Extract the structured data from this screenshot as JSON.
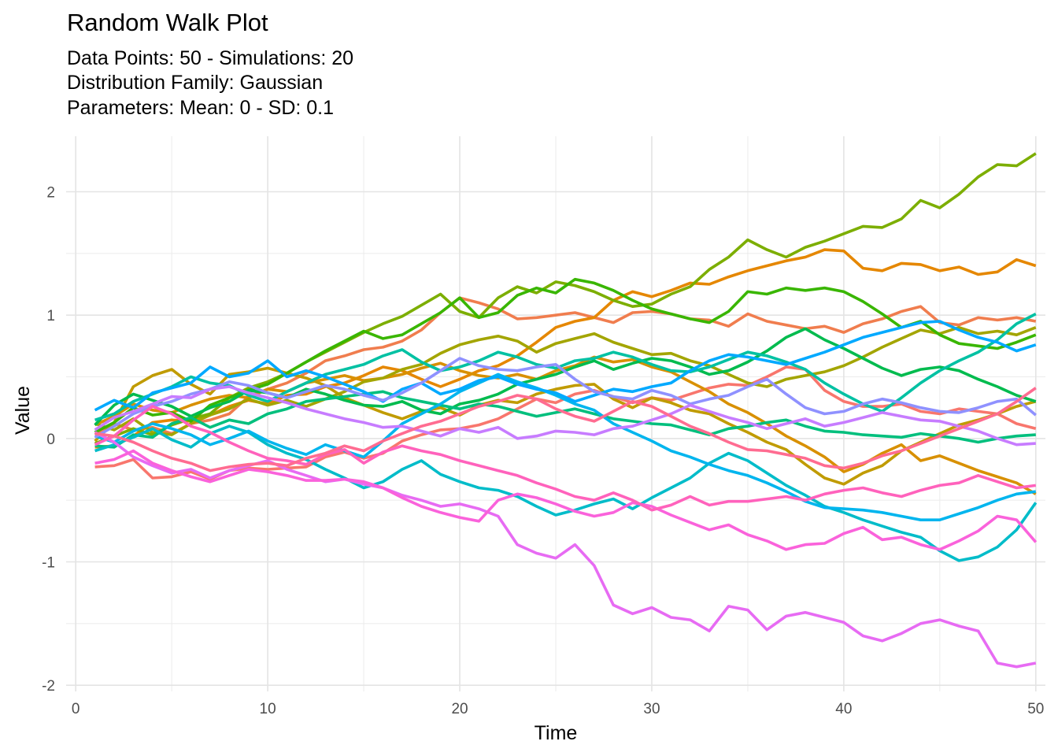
{
  "chart_data": {
    "type": "line",
    "title": "Random Walk Plot",
    "subtitle_lines": [
      "Data Points: 50 - Simulations: 20",
      "Distribution Family: Gaussian",
      "Parameters: Mean: 0 - SD: 0.1"
    ],
    "xlabel": "Time",
    "ylabel": "Value",
    "xlim": [
      -0.5,
      50.5
    ],
    "ylim": [
      -2.05,
      2.45
    ],
    "xticks": [
      0,
      10,
      20,
      30,
      40,
      50
    ],
    "yticks": [
      -2,
      -1,
      0,
      1,
      2
    ],
    "grid": true,
    "legend": "none",
    "x": [
      1,
      2,
      3,
      4,
      5,
      6,
      7,
      8,
      9,
      10,
      11,
      12,
      13,
      14,
      15,
      16,
      17,
      18,
      19,
      20,
      21,
      22,
      23,
      24,
      25,
      26,
      27,
      28,
      29,
      30,
      31,
      32,
      33,
      34,
      35,
      36,
      37,
      38,
      39,
      40,
      41,
      42,
      43,
      44,
      45,
      46,
      47,
      48,
      49,
      50
    ],
    "series": [
      {
        "color": "#F8766D",
        "values": [
          -0.23,
          -0.22,
          -0.17,
          -0.32,
          -0.31,
          -0.27,
          -0.33,
          -0.26,
          -0.24,
          -0.25,
          -0.24,
          -0.23,
          -0.15,
          -0.11,
          -0.16,
          -0.12,
          -0.02,
          0.03,
          0.07,
          0.08,
          0.11,
          0.16,
          0.24,
          0.32,
          0.29,
          0.36,
          0.39,
          0.34,
          0.29,
          0.33,
          0.31,
          0.36,
          0.41,
          0.44,
          0.43,
          0.5,
          0.58,
          0.56,
          0.39,
          0.3,
          0.26,
          0.26,
          0.28,
          0.22,
          0.2,
          0.24,
          0.22,
          0.2,
          0.12,
          0.08
        ]
      },
      {
        "color": "#F07D4E",
        "values": [
          0.03,
          0.12,
          0.07,
          0.09,
          0.04,
          0.12,
          0.15,
          0.2,
          0.34,
          0.4,
          0.45,
          0.53,
          0.63,
          0.67,
          0.72,
          0.74,
          0.79,
          0.88,
          1.02,
          1.14,
          1.1,
          1.05,
          0.97,
          0.98,
          1.0,
          1.02,
          0.98,
          0.94,
          1.02,
          1.03,
          1.01,
          0.97,
          0.96,
          0.91,
          1.01,
          0.95,
          0.92,
          0.89,
          0.91,
          0.86,
          0.93,
          0.97,
          1.03,
          1.07,
          0.94,
          0.92,
          0.98,
          0.96,
          0.98,
          0.95
        ]
      },
      {
        "color": "#E58700",
        "values": [
          -0.07,
          -0.06,
          0.02,
          0.13,
          0.15,
          0.14,
          0.19,
          0.26,
          0.31,
          0.28,
          0.35,
          0.36,
          0.42,
          0.45,
          0.51,
          0.58,
          0.55,
          0.48,
          0.42,
          0.48,
          0.55,
          0.59,
          0.67,
          0.78,
          0.9,
          0.95,
          0.98,
          1.12,
          1.19,
          1.15,
          1.2,
          1.26,
          1.25,
          1.31,
          1.36,
          1.4,
          1.44,
          1.47,
          1.53,
          1.52,
          1.38,
          1.36,
          1.42,
          1.41,
          1.36,
          1.39,
          1.33,
          1.35,
          1.45,
          1.4
        ]
      },
      {
        "color": "#D89000",
        "values": [
          0.11,
          0.18,
          0.28,
          0.23,
          0.21,
          0.27,
          0.32,
          0.35,
          0.33,
          0.4,
          0.38,
          0.45,
          0.48,
          0.51,
          0.47,
          0.49,
          0.52,
          0.57,
          0.61,
          0.55,
          0.51,
          0.49,
          0.52,
          0.48,
          0.55,
          0.59,
          0.66,
          0.62,
          0.64,
          0.58,
          0.54,
          0.46,
          0.38,
          0.28,
          0.21,
          0.12,
          0.02,
          -0.06,
          -0.15,
          -0.27,
          -0.21,
          -0.12,
          -0.05,
          -0.18,
          -0.14,
          -0.2,
          -0.26,
          -0.31,
          -0.36,
          -0.45
        ]
      },
      {
        "color": "#C09B00",
        "values": [
          -0.02,
          0.13,
          0.42,
          0.51,
          0.56,
          0.44,
          0.36,
          0.52,
          0.54,
          0.57,
          0.53,
          0.49,
          0.43,
          0.33,
          0.27,
          0.21,
          0.16,
          0.22,
          0.25,
          0.19,
          0.27,
          0.31,
          0.29,
          0.36,
          0.4,
          0.43,
          0.44,
          0.32,
          0.25,
          0.33,
          0.29,
          0.23,
          0.2,
          0.12,
          0.05,
          -0.03,
          -0.09,
          -0.21,
          -0.32,
          -0.37,
          -0.28,
          -0.22,
          -0.1,
          -0.03,
          0.04,
          0.11,
          0.15,
          0.2,
          0.26,
          0.3
        ]
      },
      {
        "color": "#A3A500",
        "values": [
          0.12,
          0.07,
          0.16,
          0.05,
          0.03,
          0.12,
          0.19,
          0.24,
          0.32,
          0.27,
          0.31,
          0.26,
          0.32,
          0.38,
          0.46,
          0.49,
          0.56,
          0.6,
          0.69,
          0.76,
          0.8,
          0.83,
          0.79,
          0.7,
          0.77,
          0.81,
          0.85,
          0.78,
          0.73,
          0.68,
          0.69,
          0.63,
          0.59,
          0.52,
          0.45,
          0.42,
          0.48,
          0.51,
          0.54,
          0.59,
          0.66,
          0.74,
          0.81,
          0.88,
          0.85,
          0.9,
          0.85,
          0.87,
          0.84,
          0.9
        ]
      },
      {
        "color": "#7CAE00",
        "values": [
          -0.04,
          0.02,
          0.08,
          0.03,
          0.11,
          0.16,
          0.2,
          0.33,
          0.41,
          0.46,
          0.53,
          0.62,
          0.7,
          0.78,
          0.86,
          0.93,
          0.99,
          1.08,
          1.17,
          1.03,
          0.98,
          1.14,
          1.23,
          1.18,
          1.27,
          1.24,
          1.19,
          1.12,
          1.07,
          1.09,
          1.17,
          1.23,
          1.37,
          1.47,
          1.61,
          1.53,
          1.47,
          1.55,
          1.6,
          1.66,
          1.72,
          1.71,
          1.78,
          1.93,
          1.87,
          1.98,
          2.12,
          2.22,
          2.21,
          2.31
        ]
      },
      {
        "color": "#39B600",
        "values": [
          0.05,
          0.13,
          0.25,
          0.19,
          0.21,
          0.14,
          0.27,
          0.33,
          0.39,
          0.44,
          0.53,
          0.62,
          0.71,
          0.79,
          0.87,
          0.81,
          0.84,
          0.93,
          1.02,
          1.14,
          0.98,
          1.02,
          1.16,
          1.22,
          1.18,
          1.29,
          1.26,
          1.2,
          1.12,
          1.05,
          1.01,
          0.97,
          0.94,
          1.03,
          1.19,
          1.17,
          1.22,
          1.2,
          1.22,
          1.19,
          1.11,
          1.01,
          0.9,
          0.95,
          0.84,
          0.77,
          0.75,
          0.73,
          0.78,
          0.84
        ]
      },
      {
        "color": "#00BB4E",
        "values": [
          0.11,
          0.27,
          0.36,
          0.31,
          0.26,
          0.18,
          0.25,
          0.3,
          0.39,
          0.37,
          0.33,
          0.4,
          0.36,
          0.31,
          0.27,
          0.26,
          0.3,
          0.23,
          0.2,
          0.28,
          0.31,
          0.36,
          0.44,
          0.48,
          0.52,
          0.58,
          0.63,
          0.56,
          0.61,
          0.65,
          0.63,
          0.58,
          0.52,
          0.55,
          0.62,
          0.71,
          0.82,
          0.89,
          0.8,
          0.73,
          0.65,
          0.57,
          0.51,
          0.56,
          0.58,
          0.55,
          0.48,
          0.42,
          0.35,
          0.3
        ]
      },
      {
        "color": "#00BF7D",
        "values": [
          -0.06,
          -0.07,
          0.03,
          0.01,
          0.12,
          0.17,
          0.09,
          0.15,
          0.12,
          0.2,
          0.24,
          0.3,
          0.32,
          0.34,
          0.36,
          0.38,
          0.33,
          0.3,
          0.27,
          0.24,
          0.28,
          0.26,
          0.22,
          0.18,
          0.21,
          0.24,
          0.2,
          0.16,
          0.14,
          0.12,
          0.11,
          0.07,
          0.03,
          0.08,
          0.1,
          0.13,
          0.15,
          0.1,
          0.06,
          0.05,
          0.03,
          0.02,
          0.01,
          0.04,
          0.02,
          0.0,
          -0.03,
          0.0,
          0.02,
          0.03
        ]
      },
      {
        "color": "#00C1A3",
        "values": [
          0.15,
          0.2,
          0.3,
          0.36,
          0.42,
          0.5,
          0.45,
          0.43,
          0.35,
          0.3,
          0.38,
          0.45,
          0.52,
          0.56,
          0.6,
          0.67,
          0.72,
          0.62,
          0.55,
          0.58,
          0.63,
          0.7,
          0.66,
          0.6,
          0.57,
          0.63,
          0.65,
          0.7,
          0.66,
          0.6,
          0.55,
          0.54,
          0.58,
          0.64,
          0.7,
          0.67,
          0.62,
          0.56,
          0.45,
          0.36,
          0.28,
          0.22,
          0.33,
          0.45,
          0.55,
          0.63,
          0.7,
          0.8,
          0.93,
          1.01
        ]
      },
      {
        "color": "#00BCC9",
        "values": [
          -0.1,
          -0.05,
          0.01,
          0.08,
          -0.01,
          -0.07,
          0.04,
          0.1,
          0.05,
          -0.05,
          -0.12,
          -0.17,
          -0.25,
          -0.32,
          -0.4,
          -0.35,
          -0.25,
          -0.18,
          -0.29,
          -0.35,
          -0.4,
          -0.42,
          -0.47,
          -0.55,
          -0.62,
          -0.58,
          -0.53,
          -0.49,
          -0.57,
          -0.48,
          -0.4,
          -0.32,
          -0.2,
          -0.12,
          -0.18,
          -0.28,
          -0.38,
          -0.46,
          -0.55,
          -0.6,
          -0.66,
          -0.71,
          -0.76,
          -0.8,
          -0.91,
          -0.99,
          -0.96,
          -0.88,
          -0.74,
          -0.52
        ]
      },
      {
        "color": "#00B5EE",
        "values": [
          0.02,
          -0.03,
          0.06,
          0.12,
          0.08,
          0.03,
          -0.05,
          0.0,
          0.06,
          -0.02,
          -0.08,
          -0.13,
          -0.05,
          -0.1,
          -0.15,
          -0.02,
          0.12,
          0.2,
          0.28,
          0.38,
          0.45,
          0.52,
          0.46,
          0.41,
          0.35,
          0.28,
          0.23,
          0.12,
          0.05,
          -0.02,
          -0.1,
          -0.15,
          -0.21,
          -0.26,
          -0.3,
          -0.36,
          -0.43,
          -0.51,
          -0.56,
          -0.57,
          -0.58,
          -0.6,
          -0.63,
          -0.66,
          -0.66,
          -0.61,
          -0.56,
          -0.5,
          -0.45,
          -0.43
        ]
      },
      {
        "color": "#00A9FF",
        "values": [
          0.23,
          0.31,
          0.25,
          0.37,
          0.41,
          0.45,
          0.58,
          0.5,
          0.53,
          0.63,
          0.5,
          0.55,
          0.5,
          0.44,
          0.38,
          0.3,
          0.4,
          0.45,
          0.36,
          0.4,
          0.47,
          0.5,
          0.44,
          0.4,
          0.37,
          0.3,
          0.35,
          0.4,
          0.38,
          0.42,
          0.45,
          0.55,
          0.63,
          0.68,
          0.66,
          0.63,
          0.6,
          0.65,
          0.7,
          0.76,
          0.82,
          0.86,
          0.9,
          0.94,
          0.95,
          0.88,
          0.82,
          0.78,
          0.71,
          0.76
        ]
      },
      {
        "color": "#8F91FF",
        "values": [
          0.01,
          0.1,
          0.2,
          0.26,
          0.3,
          0.36,
          0.4,
          0.46,
          0.43,
          0.37,
          0.33,
          0.38,
          0.43,
          0.4,
          0.35,
          0.31,
          0.37,
          0.45,
          0.55,
          0.65,
          0.59,
          0.56,
          0.55,
          0.58,
          0.6,
          0.48,
          0.38,
          0.34,
          0.32,
          0.39,
          0.35,
          0.28,
          0.32,
          0.35,
          0.42,
          0.48,
          0.36,
          0.25,
          0.2,
          0.22,
          0.28,
          0.32,
          0.29,
          0.25,
          0.22,
          0.21,
          0.25,
          0.3,
          0.32,
          0.19
        ]
      },
      {
        "color": "#C77CFF",
        "values": [
          0.07,
          0.17,
          0.22,
          0.28,
          0.34,
          0.33,
          0.4,
          0.42,
          0.37,
          0.33,
          0.29,
          0.24,
          0.2,
          0.16,
          0.13,
          0.09,
          0.1,
          0.06,
          0.02,
          0.08,
          0.05,
          0.09,
          0.0,
          0.02,
          0.06,
          0.05,
          0.03,
          0.08,
          0.1,
          0.15,
          0.2,
          0.27,
          0.22,
          0.17,
          0.13,
          0.08,
          0.12,
          0.16,
          0.1,
          0.13,
          0.17,
          0.21,
          0.18,
          0.15,
          0.14,
          0.1,
          0.06,
          0.0,
          -0.05,
          -0.04
        ]
      },
      {
        "color": "#E76BF3",
        "values": [
          0.05,
          -0.03,
          -0.15,
          -0.22,
          -0.28,
          -0.25,
          -0.32,
          -0.26,
          -0.22,
          -0.18,
          -0.25,
          -0.3,
          -0.35,
          -0.33,
          -0.37,
          -0.4,
          -0.46,
          -0.5,
          -0.55,
          -0.53,
          -0.57,
          -0.63,
          -0.86,
          -0.93,
          -0.97,
          -0.86,
          -1.03,
          -1.35,
          -1.42,
          -1.37,
          -1.45,
          -1.47,
          -1.56,
          -1.36,
          -1.39,
          -1.55,
          -1.44,
          -1.41,
          -1.45,
          -1.49,
          -1.6,
          -1.64,
          -1.58,
          -1.5,
          -1.47,
          -1.52,
          -1.56,
          -1.82,
          -1.85,
          -1.82
        ]
      },
      {
        "color": "#FA62DB",
        "values": [
          -0.2,
          -0.17,
          -0.1,
          -0.2,
          -0.26,
          -0.31,
          -0.35,
          -0.3,
          -0.25,
          -0.27,
          -0.3,
          -0.34,
          -0.34,
          -0.33,
          -0.35,
          -0.4,
          -0.48,
          -0.55,
          -0.6,
          -0.64,
          -0.67,
          -0.5,
          -0.45,
          -0.48,
          -0.53,
          -0.59,
          -0.63,
          -0.6,
          -0.52,
          -0.55,
          -0.62,
          -0.68,
          -0.74,
          -0.7,
          -0.78,
          -0.83,
          -0.9,
          -0.86,
          -0.85,
          -0.77,
          -0.72,
          -0.82,
          -0.8,
          -0.86,
          -0.9,
          -0.83,
          -0.75,
          -0.63,
          -0.66,
          -0.84
        ]
      },
      {
        "color": "#FF62BC",
        "values": [
          -0.05,
          0.02,
          0.15,
          0.26,
          0.2,
          0.1,
          0.05,
          -0.03,
          -0.1,
          -0.16,
          -0.18,
          -0.21,
          -0.13,
          -0.09,
          -0.2,
          -0.11,
          -0.06,
          -0.1,
          -0.13,
          -0.18,
          -0.22,
          -0.26,
          -0.3,
          -0.36,
          -0.41,
          -0.47,
          -0.5,
          -0.44,
          -0.5,
          -0.58,
          -0.54,
          -0.47,
          -0.54,
          -0.51,
          -0.51,
          -0.49,
          -0.47,
          -0.5,
          -0.45,
          -0.42,
          -0.4,
          -0.44,
          -0.47,
          -0.42,
          -0.38,
          -0.36,
          -0.3,
          -0.35,
          -0.4,
          -0.38
        ]
      },
      {
        "color": "#FF6C91",
        "values": [
          0.04,
          0.02,
          -0.03,
          -0.1,
          -0.16,
          -0.2,
          -0.26,
          -0.23,
          -0.21,
          -0.2,
          -0.22,
          -0.16,
          -0.12,
          -0.06,
          -0.1,
          -0.02,
          0.04,
          0.1,
          0.14,
          0.2,
          0.26,
          0.3,
          0.35,
          0.32,
          0.24,
          0.18,
          0.14,
          0.22,
          0.3,
          0.26,
          0.18,
          0.1,
          0.04,
          -0.03,
          -0.09,
          -0.1,
          -0.13,
          -0.16,
          -0.22,
          -0.24,
          -0.2,
          -0.14,
          -0.1,
          -0.04,
          0.02,
          0.08,
          0.14,
          0.2,
          0.3,
          0.41
        ]
      }
    ]
  }
}
